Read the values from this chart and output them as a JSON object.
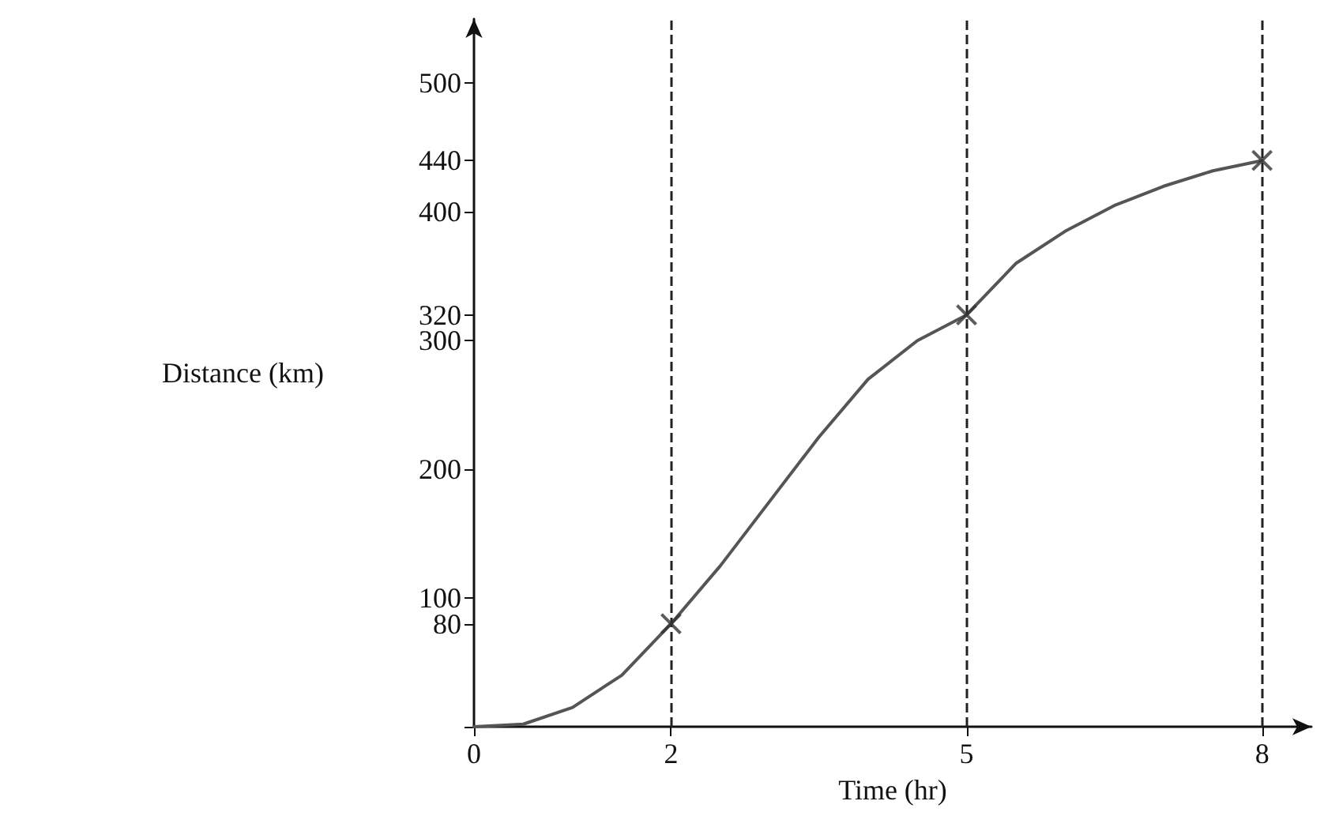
{
  "chart_data": {
    "type": "line",
    "xlabel": "Time (hr)",
    "ylabel": "Distance (km)",
    "xlim": [
      0,
      8.5
    ],
    "xticks": [
      0,
      2,
      5,
      8
    ],
    "ylim": [
      0,
      550
    ],
    "yticks": [
      {
        "value": 0,
        "label": null
      },
      80,
      100,
      200,
      300,
      320,
      400,
      440,
      500
    ],
    "grid": false,
    "series": [
      {
        "color": "#555555",
        "x": [
          0,
          0.5,
          1,
          1.5,
          2,
          2.5,
          3,
          3.5,
          4,
          4.5,
          5,
          5.5,
          6,
          6.5,
          7,
          7.5,
          8
        ],
        "values": [
          0,
          2,
          15,
          40,
          80,
          125,
          175,
          225,
          270,
          300,
          320,
          360,
          385,
          405,
          420,
          432,
          440
        ]
      },
      {
        "type": "scatter",
        "color": "#333333",
        "marker": "cross",
        "x": [
          2,
          5,
          8
        ],
        "values": [
          80,
          320,
          440
        ]
      }
    ],
    "ref_lines": [
      {
        "axis": "x",
        "value": 2,
        "line_style": "dashed",
        "color": "#222222"
      },
      {
        "axis": "x",
        "value": 5,
        "line_style": "dashed",
        "color": "#222222"
      },
      {
        "axis": "x",
        "value": 8,
        "line_style": "dashed",
        "color": "#222222"
      }
    ]
  }
}
